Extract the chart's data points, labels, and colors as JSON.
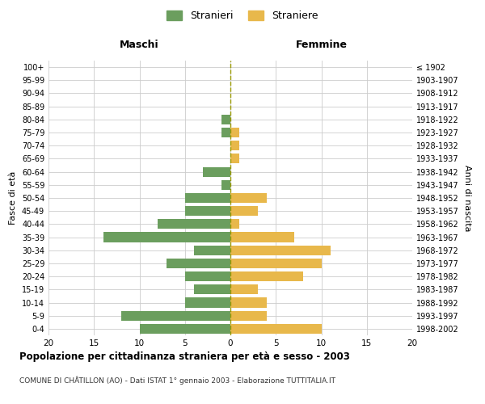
{
  "age_groups": [
    "0-4",
    "5-9",
    "10-14",
    "15-19",
    "20-24",
    "25-29",
    "30-34",
    "35-39",
    "40-44",
    "45-49",
    "50-54",
    "55-59",
    "60-64",
    "65-69",
    "70-74",
    "75-79",
    "80-84",
    "85-89",
    "90-94",
    "95-99",
    "100+"
  ],
  "birth_years": [
    "1998-2002",
    "1993-1997",
    "1988-1992",
    "1983-1987",
    "1978-1982",
    "1973-1977",
    "1968-1972",
    "1963-1967",
    "1958-1962",
    "1953-1957",
    "1948-1952",
    "1943-1947",
    "1938-1942",
    "1933-1937",
    "1928-1932",
    "1923-1927",
    "1918-1922",
    "1913-1917",
    "1908-1912",
    "1903-1907",
    "≤ 1902"
  ],
  "maschi": [
    10,
    12,
    5,
    4,
    5,
    7,
    4,
    14,
    8,
    5,
    5,
    1,
    3,
    0,
    0,
    1,
    1,
    0,
    0,
    0,
    0
  ],
  "femmine": [
    10,
    4,
    4,
    3,
    8,
    10,
    11,
    7,
    1,
    3,
    4,
    0,
    0,
    1,
    1,
    1,
    0,
    0,
    0,
    0,
    0
  ],
  "maschi_color": "#6B9E5E",
  "femmine_color": "#E8B84B",
  "background_color": "#ffffff",
  "grid_color": "#cccccc",
  "center_line_color": "#999900",
  "title": "Popolazione per cittadinanza straniera per età e sesso - 2003",
  "subtitle": "COMUNE DI CHÂTILLON (AO) - Dati ISTAT 1° gennaio 2003 - Elaborazione TUTTITALIA.IT",
  "xlabel_left": "Maschi",
  "xlabel_right": "Femmine",
  "ylabel_left": "Fasce di età",
  "ylabel_right": "Anni di nascita",
  "legend_stranieri": "Stranieri",
  "legend_straniere": "Straniere",
  "xlim": 20
}
